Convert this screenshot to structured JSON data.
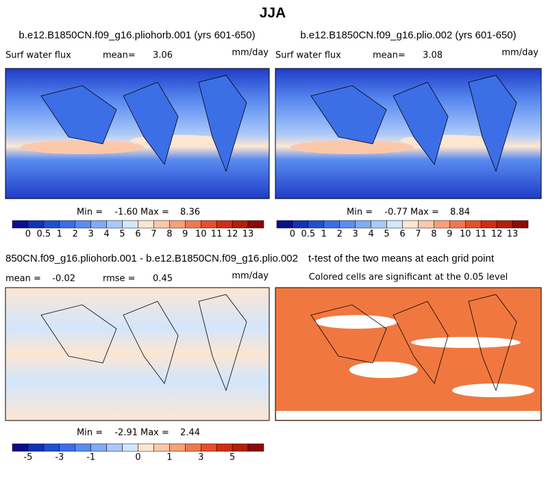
{
  "title": "JJA",
  "panels": [
    {
      "title": "b.e12.B1850CN.f09_g16.pliohorb.001 (yrs 601-650)",
      "left": "Surf water flux",
      "mid_label": "mean=",
      "mid_value": "3.06",
      "units": "mm/day",
      "min_label": "Min =",
      "min": "-1.60",
      "max_label": "Max =",
      "max": "8.36",
      "colorbar": {
        "colors": [
          "#0a0f8c",
          "#1432b4",
          "#1e50d2",
          "#3c6ee6",
          "#5a8cf0",
          "#82aaf5",
          "#aac8fa",
          "#d2e6fc",
          "#fde6d2",
          "#fcc8aa",
          "#f8a078",
          "#f07850",
          "#e65028",
          "#d22d14",
          "#b41e0a",
          "#8c0a05"
        ],
        "labels": [
          "0",
          "0.5",
          "1",
          "2",
          "3",
          "4",
          "5",
          "6",
          "7",
          "8",
          "9",
          "10",
          "11",
          "12",
          "13"
        ]
      }
    },
    {
      "title": "b.e12.B1850CN.f09_g16.plio.002 (yrs 601-650)",
      "left": "Surf water flux",
      "mid_label": "mean=",
      "mid_value": "3.08",
      "units": "mm/day",
      "min_label": "Min =",
      "min": "-0.77",
      "max_label": "Max =",
      "max": "8.84",
      "colorbar": {
        "colors": [
          "#0a0f8c",
          "#1432b4",
          "#1e50d2",
          "#3c6ee6",
          "#5a8cf0",
          "#82aaf5",
          "#aac8fa",
          "#d2e6fc",
          "#fde6d2",
          "#fcc8aa",
          "#f8a078",
          "#f07850",
          "#e65028",
          "#d22d14",
          "#b41e0a",
          "#8c0a05"
        ],
        "labels": [
          "0",
          "0.5",
          "1",
          "2",
          "3",
          "4",
          "5",
          "6",
          "7",
          "8",
          "9",
          "10",
          "11",
          "12",
          "13"
        ]
      }
    },
    {
      "title": "850CN.f09_g16.pliohorb.001 - b.e12.B1850CN.f09_g16.plio.002",
      "left": "mean =",
      "left_value": "-0.02",
      "mid_label": "rmse =",
      "mid_value": "0.45",
      "units": "mm/day",
      "min_label": "Min =",
      "min": "-2.91",
      "max_label": "Max =",
      "max": "2.44",
      "colorbar": {
        "colors": [
          "#0a0f8c",
          "#1432b4",
          "#1e50d2",
          "#3c6ee6",
          "#5a8cf0",
          "#82aaf5",
          "#aac8fa",
          "#d2e6fc",
          "#fde6d2",
          "#fcc8aa",
          "#f8a078",
          "#f07850",
          "#e65028",
          "#d22d14",
          "#b41e0a",
          "#8c0a05"
        ],
        "labels": [
          "-5",
          null,
          "-3",
          null,
          "-1",
          null,
          null,
          "0",
          null,
          "1",
          null,
          "3",
          null,
          "5",
          null
        ]
      }
    },
    {
      "title": "t-test of the two means at each grid point",
      "subtitle": "Colored cells are significant at the 0.05 level"
    }
  ]
}
